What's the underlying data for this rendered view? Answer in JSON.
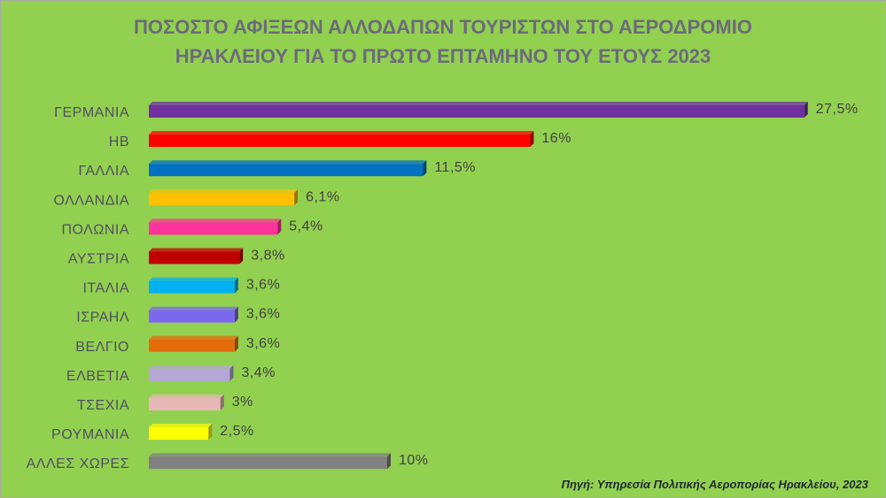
{
  "chart_data": {
    "type": "bar",
    "orientation": "horizontal",
    "title": "ΠΟΣΟΣΤΟ ΑΦΙΞΕΩΝ ΑΛΛΟΔΑΠΩΝ ΤΟΥΡΙΣΤΩΝ  ΣΤΟ ΑΕΡΟΔΡΟΜΙΟ\nΗΡΑΚΛΕΙΟΥ ΓΙΑ ΤΟ ΠΡΩΤΟ ΕΠΤΑΜΗΝΟ ΤΟΥ ΕΤΟΥΣ 2023",
    "categories": [
      "ΓΕΡΜΑΝΙΑ",
      "ΗΒ",
      "ΓΑΛΛΙΑ",
      "ΟΛΛΑΝΔΙΑ",
      "ΠΟΛΩΝΙΑ",
      "ΑΥΣΤΡΙΑ",
      "ΙΤΑΛΙΑ",
      "ΙΣΡΑΗΛ",
      "ΒΕΛΓΙΟ",
      "ΕΛΒΕΤΙΑ",
      "ΤΣΕΧΙΑ",
      "ΡΟΥΜΑΝΙΑ",
      "ΑΛΛΕΣ ΧΩΡΕΣ"
    ],
    "values": [
      27.5,
      16,
      11.5,
      6.1,
      5.4,
      3.8,
      3.6,
      3.6,
      3.6,
      3.4,
      3,
      2.5,
      10
    ],
    "labels": [
      "27,5%",
      "16%",
      "11,5%",
      "6,1%",
      "5,4%",
      "3,8%",
      "3,6%",
      "3,6%",
      "3,6%",
      "3,4%",
      "3%",
      "2,5%",
      "10%"
    ],
    "colors": [
      "#7030a0",
      "#ff0000",
      "#0070c0",
      "#ffc000",
      "#ff3399",
      "#c00000",
      "#00b0f0",
      "#7b68ee",
      "#e36c09",
      "#b4a7d6",
      "#e6b8b7",
      "#ffff00",
      "#808080"
    ],
    "xlim": [
      0,
      28
    ],
    "grid": false,
    "legend": "none"
  },
  "source": "Πηγή: Υπηρεσία Πολιτικής Αεροπορίας Ηρακλείου, 2023"
}
